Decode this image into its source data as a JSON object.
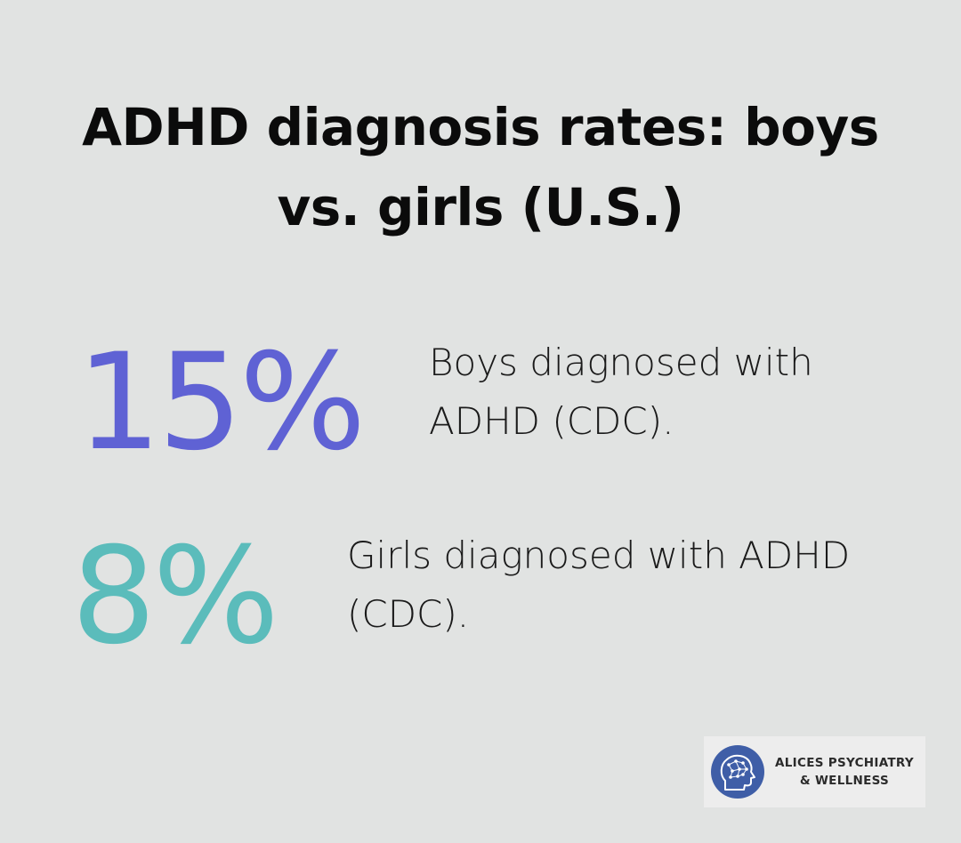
{
  "title": {
    "line1": "ADHD diagnosis rates: boys",
    "line2": "vs. girls (U.S.)"
  },
  "stats": [
    {
      "value": "15%",
      "color": "#5f62d4",
      "description_line1": "Boys diagnosed with",
      "description_line2": "ADHD (CDC)."
    },
    {
      "value": "8%",
      "color": "#5bbcbb",
      "description_line1": "Girls diagnosed with ADHD",
      "description_line2": "(CDC)."
    }
  ],
  "logo": {
    "line1": "ALICES PSYCHIATRY",
    "line2": "& WELLNESS",
    "icon": "head-brain-network-icon",
    "color": "#3f5ea7"
  }
}
